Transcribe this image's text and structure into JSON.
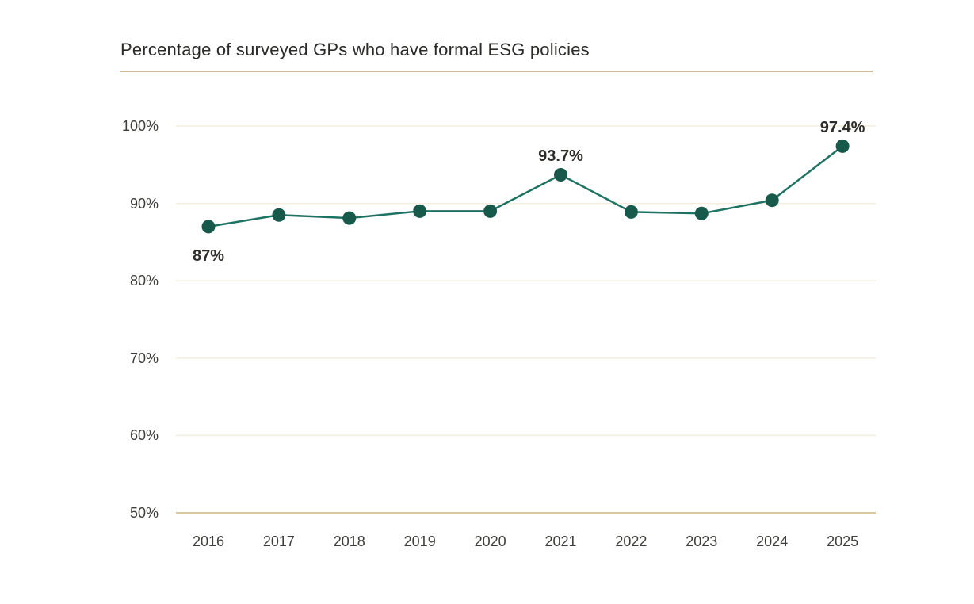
{
  "page": {
    "background": "#ffffff"
  },
  "chart_data": {
    "type": "line",
    "title": "Percentage of surveyed GPs who have formal ESG policies",
    "categories": [
      "2016",
      "2017",
      "2018",
      "2019",
      "2020",
      "2021",
      "2022",
      "2023",
      "2024",
      "2025"
    ],
    "values": [
      87,
      88.5,
      88.1,
      89,
      89,
      93.7,
      88.9,
      88.7,
      90.4,
      97.4
    ],
    "unit": "%",
    "xlabel": "",
    "ylabel": "",
    "ylim": [
      50,
      100
    ],
    "yticks": [
      100,
      90,
      80,
      70,
      60,
      50
    ],
    "ytick_labels": [
      "100%",
      "90%",
      "80%",
      "70%",
      "60%",
      "50%"
    ],
    "grid": "horizontal",
    "legend": "none",
    "annotations": [
      {
        "index": 0,
        "category": "2016",
        "text": "87%",
        "placement": "below"
      },
      {
        "index": 5,
        "category": "2021",
        "text": "93.7%",
        "placement": "above"
      },
      {
        "index": 9,
        "category": "2025",
        "text": "97.4%",
        "placement": "above"
      }
    ],
    "colors": {
      "line": "#1e7263",
      "marker": "#17594b",
      "gridline": "#f3eedd",
      "baseline": "#d8c9a1",
      "title_rule": "#cbbc92",
      "title_text": "#2b2a28",
      "tick_text": "#3e3d3a",
      "annotation_text": "#2e2d2a"
    }
  }
}
